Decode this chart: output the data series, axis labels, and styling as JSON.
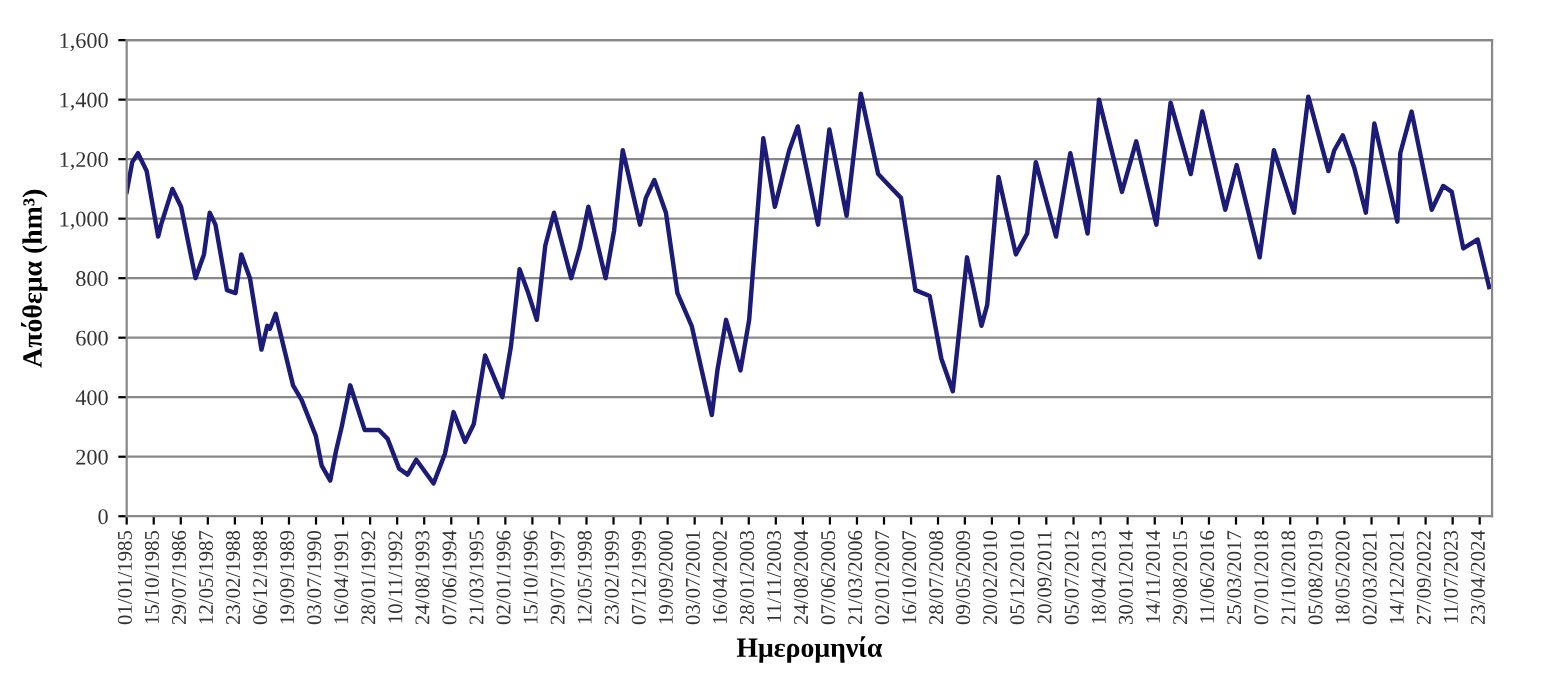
{
  "chart_data": {
    "type": "line",
    "xlabel": "Ημερομηνία",
    "ylabel": "Απόθεμα (hm³)",
    "x": [
      "1985-01",
      "1985-03",
      "1985-05",
      "1985-08",
      "1985-12",
      "1986-01",
      "1986-05",
      "1986-08",
      "1987-01",
      "1987-04",
      "1987-06",
      "1987-08",
      "1987-12",
      "1988-03",
      "1988-05",
      "1988-08",
      "1988-12",
      "1989-02",
      "1989-03",
      "1989-05",
      "1989-11",
      "1990-02",
      "1990-07",
      "1990-09",
      "1990-12",
      "1991-02",
      "1991-04",
      "1991-07",
      "1991-12",
      "1992-05",
      "1992-08",
      "1992-12",
      "1993-03",
      "1993-06",
      "1993-12",
      "1994-04",
      "1994-07",
      "1994-11",
      "1995-02",
      "1995-06",
      "1995-12",
      "1996-03",
      "1996-06",
      "1996-09",
      "1996-12",
      "1997-03",
      "1997-06",
      "1997-12",
      "1998-03",
      "1998-06",
      "1998-12",
      "1999-03",
      "1999-06",
      "1999-12",
      "2000-02",
      "2000-05",
      "2000-09",
      "2001-01",
      "2001-06",
      "2002-01",
      "2002-03",
      "2002-06",
      "2002-11",
      "2003-02",
      "2003-07",
      "2003-11",
      "2004-04",
      "2004-07",
      "2005-02",
      "2005-06",
      "2005-12",
      "2006-05",
      "2006-11",
      "2007-04",
      "2007-07",
      "2007-12",
      "2008-05",
      "2008-09",
      "2009-01",
      "2009-06",
      "2009-11",
      "2010-01",
      "2010-05",
      "2010-11",
      "2011-03",
      "2011-06",
      "2012-01",
      "2012-06",
      "2012-12",
      "2013-04",
      "2013-12",
      "2014-05",
      "2014-12",
      "2015-05",
      "2015-12",
      "2016-04",
      "2016-12",
      "2017-04",
      "2017-12",
      "2018-05",
      "2018-12",
      "2019-05",
      "2019-12",
      "2020-02",
      "2020-05",
      "2020-09",
      "2021-01",
      "2021-04",
      "2021-12",
      "2022-01",
      "2022-05",
      "2022-12",
      "2023-04",
      "2023-07",
      "2023-11",
      "2024-04",
      "2024-08"
    ],
    "series": [
      {
        "color": "#1c1c78",
        "values": [
          1090,
          1190,
          1220,
          1160,
          940,
          980,
          1100,
          1040,
          800,
          880,
          1020,
          980,
          760,
          750,
          880,
          800,
          560,
          640,
          630,
          680,
          440,
          390,
          270,
          170,
          120,
          220,
          300,
          440,
          290,
          290,
          260,
          160,
          140,
          190,
          110,
          210,
          350,
          250,
          310,
          540,
          400,
          570,
          830,
          750,
          660,
          910,
          1020,
          800,
          900,
          1040,
          800,
          960,
          1230,
          980,
          1070,
          1130,
          1020,
          750,
          640,
          340,
          490,
          660,
          490,
          660,
          1270,
          1040,
          1230,
          1310,
          980,
          1300,
          1010,
          1420,
          1150,
          1100,
          1070,
          760,
          740,
          530,
          420,
          870,
          640,
          710,
          1140,
          880,
          950,
          1190,
          940,
          1220,
          950,
          1400,
          1090,
          1260,
          980,
          1390,
          1150,
          1360,
          1030,
          1180,
          870,
          1230,
          1020,
          1410,
          1160,
          1230,
          1280,
          1170,
          1020,
          1320,
          990,
          1220,
          1360,
          1030,
          1110,
          1090,
          900,
          930,
          770
        ]
      }
    ],
    "xlim": [
      "1985-01-01",
      "2024-09-01"
    ],
    "xticks": [
      {
        "value": "1985-01-01",
        "label": "01/01/1985"
      },
      {
        "value": "1985-10-15",
        "label": "15/10/1985"
      },
      {
        "value": "1986-07-29",
        "label": "29/07/1986"
      },
      {
        "value": "1987-05-12",
        "label": "12/05/1987"
      },
      {
        "value": "1988-02-23",
        "label": "23/02/1988"
      },
      {
        "value": "1988-12-06",
        "label": "06/12/1988"
      },
      {
        "value": "1989-09-19",
        "label": "19/09/1989"
      },
      {
        "value": "1990-07-03",
        "label": "03/07/1990"
      },
      {
        "value": "1991-04-16",
        "label": "16/04/1991"
      },
      {
        "value": "1992-01-28",
        "label": "28/01/1992"
      },
      {
        "value": "1992-11-10",
        "label": "10/11/1992"
      },
      {
        "value": "1993-08-24",
        "label": "24/08/1993"
      },
      {
        "value": "1994-06-07",
        "label": "07/06/1994"
      },
      {
        "value": "1995-03-21",
        "label": "21/03/1995"
      },
      {
        "value": "1996-01-02",
        "label": "02/01/1996"
      },
      {
        "value": "1996-10-15",
        "label": "15/10/1996"
      },
      {
        "value": "1997-07-29",
        "label": "29/07/1997"
      },
      {
        "value": "1998-05-12",
        "label": "12/05/1998"
      },
      {
        "value": "1999-02-23",
        "label": "23/02/1999"
      },
      {
        "value": "1999-12-07",
        "label": "07/12/1999"
      },
      {
        "value": "2000-09-19",
        "label": "19/09/2000"
      },
      {
        "value": "2001-07-03",
        "label": "03/07/2001"
      },
      {
        "value": "2002-04-16",
        "label": "16/04/2002"
      },
      {
        "value": "2003-01-28",
        "label": "28/01/2003"
      },
      {
        "value": "2003-11-11",
        "label": "11/11/2003"
      },
      {
        "value": "2004-08-24",
        "label": "24/08/2004"
      },
      {
        "value": "2005-06-07",
        "label": "07/06/2005"
      },
      {
        "value": "2006-03-21",
        "label": "21/03/2006"
      },
      {
        "value": "2007-01-02",
        "label": "02/01/2007"
      },
      {
        "value": "2007-10-16",
        "label": "16/10/2007"
      },
      {
        "value": "2008-07-28",
        "label": "28/07/2008"
      },
      {
        "value": "2009-05-09",
        "label": "09/05/2009"
      },
      {
        "value": "2010-02-20",
        "label": "20/02/2010"
      },
      {
        "value": "2010-12-05",
        "label": "05/12/2010"
      },
      {
        "value": "2011-09-20",
        "label": "20/09/2011"
      },
      {
        "value": "2012-07-05",
        "label": "05/07/2012"
      },
      {
        "value": "2013-04-18",
        "label": "18/04/2013"
      },
      {
        "value": "2014-01-30",
        "label": "30/01/2014"
      },
      {
        "value": "2014-11-14",
        "label": "14/11/2014"
      },
      {
        "value": "2015-08-29",
        "label": "29/08/2015"
      },
      {
        "value": "2016-06-11",
        "label": "11/06/2016"
      },
      {
        "value": "2017-03-25",
        "label": "25/03/2017"
      },
      {
        "value": "2018-01-07",
        "label": "07/01/2018"
      },
      {
        "value": "2018-10-21",
        "label": "21/10/2018"
      },
      {
        "value": "2019-08-05",
        "label": "05/08/2019"
      },
      {
        "value": "2020-05-18",
        "label": "18/05/2020"
      },
      {
        "value": "2021-03-02",
        "label": "02/03/2021"
      },
      {
        "value": "2021-12-14",
        "label": "14/12/2021"
      },
      {
        "value": "2022-09-27",
        "label": "27/09/2022"
      },
      {
        "value": "2023-07-11",
        "label": "11/07/2023"
      },
      {
        "value": "2024-04-23",
        "label": "23/04/2024"
      }
    ],
    "ylim": [
      0,
      1600
    ],
    "yticks": [
      0,
      {
        "value": 200,
        "label": "200"
      },
      {
        "value": 400,
        "label": "400"
      },
      {
        "value": 600,
        "label": "600"
      },
      {
        "value": 800,
        "label": "800"
      },
      {
        "value": 1000,
        "label": "1,000"
      },
      {
        "value": 1200,
        "label": "1,200"
      },
      {
        "value": 1400,
        "label": "1,400"
      },
      {
        "value": 1600,
        "label": "1,600"
      }
    ],
    "grid": "y"
  }
}
